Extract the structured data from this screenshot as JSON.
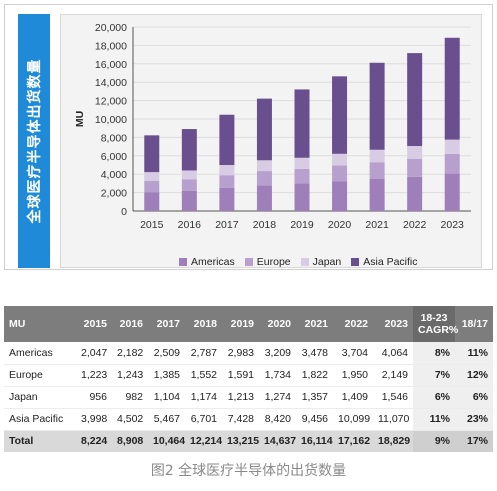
{
  "banner": {
    "label": "全球医疗半导体出货数量"
  },
  "chart_data": {
    "type": "bar",
    "stacked": true,
    "categories": [
      "2015",
      "2016",
      "2017",
      "2018",
      "2019",
      "2020",
      "2021",
      "2022",
      "2023"
    ],
    "series": [
      {
        "name": "Americas",
        "color": "#9e7fba",
        "values": [
          2047,
          2182,
          2509,
          2787,
          2983,
          3209,
          3478,
          3704,
          4064
        ]
      },
      {
        "name": "Europe",
        "color": "#b7a0cd",
        "values": [
          1223,
          1243,
          1385,
          1552,
          1591,
          1734,
          1822,
          1950,
          2149
        ]
      },
      {
        "name": "Japan",
        "color": "#d7cce4",
        "values": [
          956,
          982,
          1104,
          1174,
          1213,
          1274,
          1357,
          1409,
          1546
        ]
      },
      {
        "name": "Asia Pacific",
        "color": "#6a4f8f",
        "values": [
          3998,
          4502,
          5467,
          6701,
          7428,
          8420,
          9456,
          10099,
          11070
        ]
      }
    ],
    "ylabel": "MU",
    "xlabel": "",
    "ylim": [
      0,
      20000
    ],
    "yticks": [
      "0",
      "2,000",
      "4,000",
      "6,000",
      "8,000",
      "10,000",
      "12,000",
      "14,000",
      "16,000",
      "18,000",
      "20,000"
    ],
    "grid": true,
    "legend_position": "bottom"
  },
  "table": {
    "headers": [
      "MU",
      "2015",
      "2016",
      "2017",
      "2018",
      "2019",
      "2020",
      "2021",
      "2022",
      "2023",
      "18-23 CAGR%",
      "18/17"
    ],
    "rows": [
      {
        "cells": [
          "Americas",
          "2,047",
          "2,182",
          "2,509",
          "2,787",
          "2,983",
          "3,209",
          "3,478",
          "3,704",
          "4,064",
          "8%",
          "11%"
        ]
      },
      {
        "cells": [
          "Europe",
          "1,223",
          "1,243",
          "1,385",
          "1,552",
          "1,591",
          "1,734",
          "1,822",
          "1,950",
          "2,149",
          "7%",
          "12%"
        ]
      },
      {
        "cells": [
          "Japan",
          "956",
          "982",
          "1,104",
          "1,174",
          "1,213",
          "1,274",
          "1,357",
          "1,409",
          "1,546",
          "6%",
          "6%"
        ]
      },
      {
        "cells": [
          "Asia Pacific",
          "3,998",
          "4,502",
          "5,467",
          "6,701",
          "7,428",
          "8,420",
          "9,456",
          "10,099",
          "11,070",
          "11%",
          "23%"
        ]
      },
      {
        "cells": [
          "Total",
          "8,224",
          "8,908",
          "10,464",
          "12,214",
          "13,215",
          "14,637",
          "16,114",
          "17,162",
          "18,829",
          "9%",
          "17%"
        ],
        "is_total": true
      }
    ]
  },
  "caption": "图2 全球医疗半导体的出货数量"
}
